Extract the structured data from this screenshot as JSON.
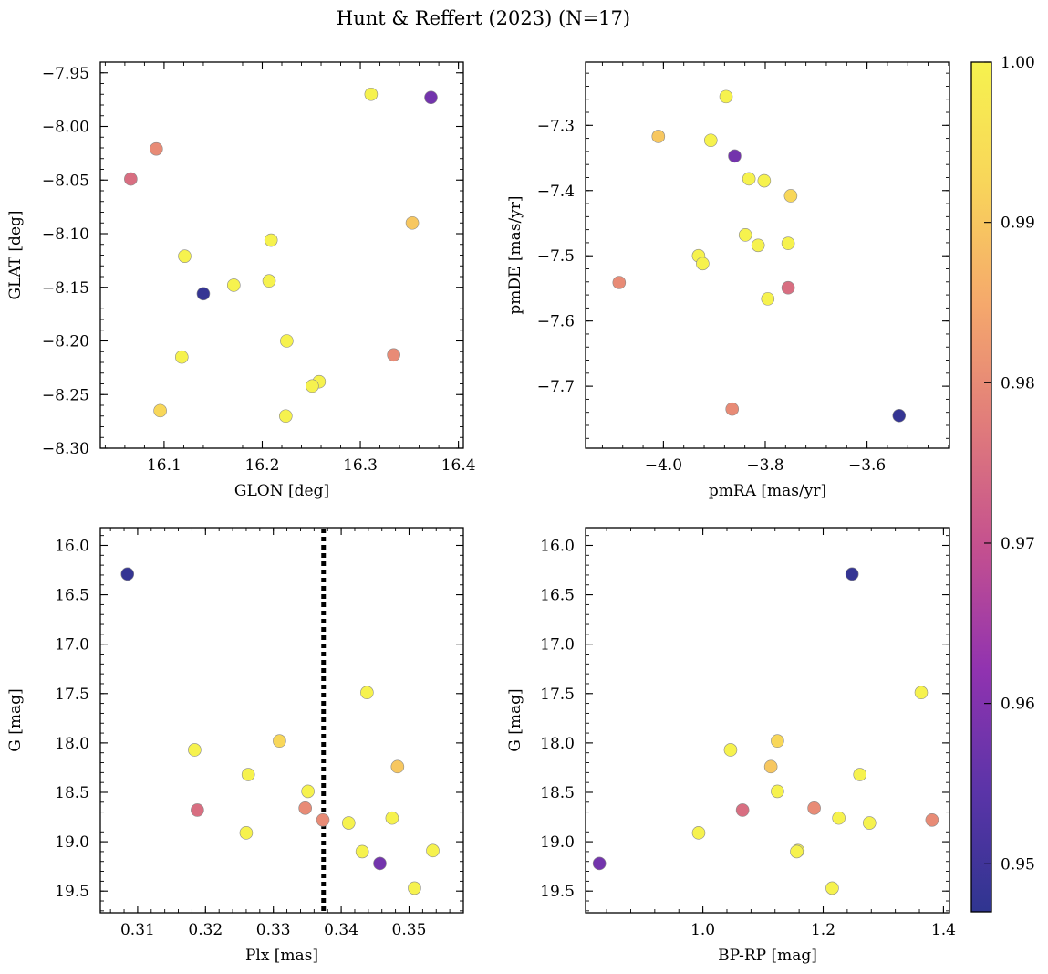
{
  "title": "Hunt & Reffert (2023) (N=17)",
  "colorbar": {
    "range": [
      0.947,
      1.0
    ],
    "ticks": [
      0.95,
      0.96,
      0.97,
      0.98,
      0.99,
      1.0
    ],
    "tick_labels": [
      "0.95",
      "0.96",
      "0.97",
      "0.98",
      "0.99",
      "1.00"
    ],
    "colormap": "plasma",
    "stops": [
      "#2f3590",
      "#5b34a8",
      "#9133b0",
      "#c4508f",
      "#e07b7b",
      "#f5a86c",
      "#f8d55a",
      "#f6f24e"
    ]
  },
  "chart_data": [
    {
      "type": "scatter",
      "title": "",
      "xlabel": "GLON [deg]",
      "ylabel": "GLAT [deg]",
      "xlim": [
        16.035,
        16.405
      ],
      "ylim": [
        -8.3,
        -7.94
      ],
      "xticks": [
        16.1,
        16.2,
        16.3,
        16.4
      ],
      "xtick_labels": [
        "16.1",
        "16.2",
        "16.3",
        "16.4"
      ],
      "yticks": [
        -7.95,
        -8.0,
        -8.05,
        -8.1,
        -8.15,
        -8.2,
        -8.25,
        -8.3
      ],
      "ytick_labels": [
        "−7.95",
        "−8.00",
        "−8.05",
        "−8.10",
        "−8.15",
        "−8.20",
        "−8.25",
        "−8.30"
      ],
      "points": [
        {
          "x": 16.311,
          "y": -7.97,
          "c": 1.0
        },
        {
          "x": 16.372,
          "y": -7.973,
          "c": 0.958
        },
        {
          "x": 16.092,
          "y": -8.021,
          "c": 0.98
        },
        {
          "x": 16.066,
          "y": -8.049,
          "c": 0.975
        },
        {
          "x": 16.353,
          "y": -8.09,
          "c": 0.99
        },
        {
          "x": 16.209,
          "y": -8.106,
          "c": 1.0
        },
        {
          "x": 16.121,
          "y": -8.121,
          "c": 1.0
        },
        {
          "x": 16.14,
          "y": -8.156,
          "c": 0.948
        },
        {
          "x": 16.171,
          "y": -8.148,
          "c": 1.0
        },
        {
          "x": 16.207,
          "y": -8.144,
          "c": 1.0
        },
        {
          "x": 16.225,
          "y": -8.2,
          "c": 1.0
        },
        {
          "x": 16.118,
          "y": -8.215,
          "c": 1.0
        },
        {
          "x": 16.334,
          "y": -8.213,
          "c": 0.98
        },
        {
          "x": 16.258,
          "y": -8.238,
          "c": 1.0
        },
        {
          "x": 16.251,
          "y": -8.242,
          "c": 1.0
        },
        {
          "x": 16.096,
          "y": -8.265,
          "c": 0.993
        },
        {
          "x": 16.224,
          "y": -8.27,
          "c": 1.0
        }
      ]
    },
    {
      "type": "scatter",
      "title": "",
      "xlabel": "pmRA [mas/yr]",
      "ylabel": "pmDE [mas/yr]",
      "xlim": [
        -4.153,
        -3.438
      ],
      "ylim": [
        -7.795,
        -7.203
      ],
      "xticks": [
        -4.0,
        -3.8,
        -3.6
      ],
      "xtick_labels": [
        "−4.0",
        "−3.8",
        "−3.6"
      ],
      "yticks": [
        -7.3,
        -7.4,
        -7.5,
        -7.6,
        -7.7
      ],
      "ytick_labels": [
        "−7.3",
        "−7.4",
        "−7.5",
        "−7.6",
        "−7.7"
      ],
      "points": [
        {
          "x": -3.877,
          "y": -7.256,
          "c": 1.0
        },
        {
          "x": -4.01,
          "y": -7.317,
          "c": 0.99
        },
        {
          "x": -3.907,
          "y": -7.323,
          "c": 1.0
        },
        {
          "x": -3.86,
          "y": -7.347,
          "c": 0.958
        },
        {
          "x": -3.832,
          "y": -7.382,
          "c": 1.0
        },
        {
          "x": -3.802,
          "y": -7.385,
          "c": 1.0
        },
        {
          "x": -3.75,
          "y": -7.408,
          "c": 0.993
        },
        {
          "x": -3.839,
          "y": -7.468,
          "c": 1.0
        },
        {
          "x": -3.814,
          "y": -7.484,
          "c": 1.0
        },
        {
          "x": -3.755,
          "y": -7.481,
          "c": 1.0
        },
        {
          "x": -3.931,
          "y": -7.5,
          "c": 1.0
        },
        {
          "x": -3.923,
          "y": -7.512,
          "c": 1.0
        },
        {
          "x": -4.087,
          "y": -7.541,
          "c": 0.98
        },
        {
          "x": -3.755,
          "y": -7.549,
          "c": 0.975
        },
        {
          "x": -3.795,
          "y": -7.566,
          "c": 1.0
        },
        {
          "x": -3.865,
          "y": -7.735,
          "c": 0.98
        },
        {
          "x": -3.537,
          "y": -7.745,
          "c": 0.948
        }
      ]
    },
    {
      "type": "scatter",
      "title": "",
      "xlabel": "Plx [mas]",
      "ylabel": "G [mag]",
      "xlim": [
        0.3045,
        0.358
      ],
      "ylim": [
        19.72,
        15.82
      ],
      "xticks": [
        0.31,
        0.32,
        0.33,
        0.34,
        0.35
      ],
      "xtick_labels": [
        "0.31",
        "0.32",
        "0.33",
        "0.34",
        "0.35"
      ],
      "yticks": [
        16.0,
        16.5,
        17.0,
        17.5,
        18.0,
        18.5,
        19.0,
        19.5
      ],
      "ytick_labels": [
        "16.0",
        "16.5",
        "17.0",
        "17.5",
        "18.0",
        "18.5",
        "19.0",
        "19.5"
      ],
      "vline": {
        "x": 0.3374,
        "style": "dotted"
      },
      "points": [
        {
          "x": 0.3085,
          "y": 16.29,
          "c": 0.948
        },
        {
          "x": 0.3438,
          "y": 17.49,
          "c": 1.0
        },
        {
          "x": 0.3309,
          "y": 17.98,
          "c": 0.993
        },
        {
          "x": 0.3184,
          "y": 18.07,
          "c": 1.0
        },
        {
          "x": 0.3483,
          "y": 18.24,
          "c": 0.99
        },
        {
          "x": 0.3263,
          "y": 18.32,
          "c": 1.0
        },
        {
          "x": 0.3351,
          "y": 18.49,
          "c": 1.0
        },
        {
          "x": 0.3347,
          "y": 18.66,
          "c": 0.98
        },
        {
          "x": 0.3188,
          "y": 18.68,
          "c": 0.975
        },
        {
          "x": 0.3475,
          "y": 18.76,
          "c": 1.0
        },
        {
          "x": 0.3373,
          "y": 18.78,
          "c": 0.98
        },
        {
          "x": 0.3411,
          "y": 18.81,
          "c": 1.0
        },
        {
          "x": 0.326,
          "y": 18.91,
          "c": 1.0
        },
        {
          "x": 0.3535,
          "y": 19.09,
          "c": 1.0
        },
        {
          "x": 0.3431,
          "y": 19.1,
          "c": 1.0
        },
        {
          "x": 0.3457,
          "y": 19.22,
          "c": 0.958
        },
        {
          "x": 0.3508,
          "y": 19.47,
          "c": 1.0
        }
      ]
    },
    {
      "type": "scatter",
      "title": "",
      "xlabel": "BP-RP [mag]",
      "ylabel": "G [mag]",
      "xlim": [
        0.805,
        1.41
      ],
      "ylim": [
        19.72,
        15.82
      ],
      "xticks": [
        1.0,
        1.2,
        1.4
      ],
      "xtick_labels": [
        "1.0",
        "1.2",
        "1.4"
      ],
      "yticks": [
        16.0,
        16.5,
        17.0,
        17.5,
        18.0,
        18.5,
        19.0,
        19.5
      ],
      "ytick_labels": [
        "16.0",
        "16.5",
        "17.0",
        "17.5",
        "18.0",
        "18.5",
        "19.0",
        "19.5"
      ],
      "points": [
        {
          "x": 1.248,
          "y": 16.29,
          "c": 0.948
        },
        {
          "x": 1.363,
          "y": 17.49,
          "c": 1.0
        },
        {
          "x": 1.124,
          "y": 17.98,
          "c": 0.993
        },
        {
          "x": 1.046,
          "y": 18.07,
          "c": 1.0
        },
        {
          "x": 1.113,
          "y": 18.24,
          "c": 0.99
        },
        {
          "x": 1.261,
          "y": 18.32,
          "c": 1.0
        },
        {
          "x": 1.124,
          "y": 18.49,
          "c": 1.0
        },
        {
          "x": 1.185,
          "y": 18.66,
          "c": 0.98
        },
        {
          "x": 1.066,
          "y": 18.68,
          "c": 0.975
        },
        {
          "x": 1.226,
          "y": 18.76,
          "c": 1.0
        },
        {
          "x": 1.381,
          "y": 18.78,
          "c": 0.98
        },
        {
          "x": 1.277,
          "y": 18.81,
          "c": 1.0
        },
        {
          "x": 0.993,
          "y": 18.91,
          "c": 1.0
        },
        {
          "x": 1.158,
          "y": 19.09,
          "c": 1.0
        },
        {
          "x": 1.156,
          "y": 19.1,
          "c": 1.0
        },
        {
          "x": 0.828,
          "y": 19.22,
          "c": 0.958
        },
        {
          "x": 1.215,
          "y": 19.47,
          "c": 1.0
        }
      ]
    }
  ]
}
